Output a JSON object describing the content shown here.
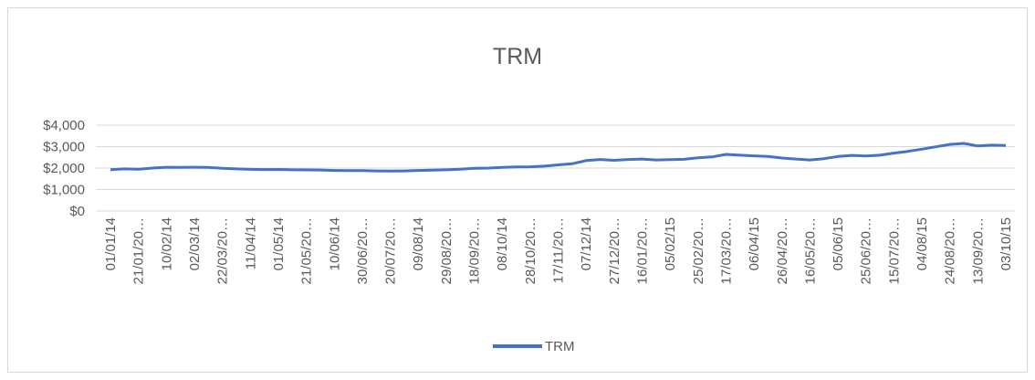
{
  "chart_data": {
    "type": "line",
    "title": "TRM",
    "categories": [
      "01/01/14",
      null,
      "21/01/20…",
      null,
      "10/02/14",
      null,
      "02/03/14",
      null,
      "22/03/20…",
      null,
      "11/04/14",
      null,
      "01/05/14",
      null,
      "21/05/20…",
      null,
      "10/06/14",
      null,
      "30/06/20…",
      null,
      "20/07/20…",
      null,
      "09/08/14",
      null,
      "29/08/20…",
      null,
      "18/09/20…",
      null,
      "08/10/14",
      null,
      "28/10/20…",
      null,
      "17/11/20…",
      null,
      "07/12/14",
      null,
      "27/12/20…",
      null,
      "16/01/20…",
      null,
      "05/02/15",
      null,
      "25/02/20…",
      null,
      "17/03/20…",
      null,
      "06/04/15",
      null,
      "26/04/20…",
      null,
      "16/05/20…",
      null,
      "05/06/15",
      null,
      "25/06/20…",
      null,
      "15/07/20…",
      null,
      "04/08/15",
      null,
      "24/08/20…",
      null,
      "13/09/20…",
      null,
      "03/10/15"
    ],
    "series": [
      {
        "name": "TRM",
        "color": "#4472c4",
        "values": [
          1927,
          1960,
          1950,
          2000,
          2040,
          2035,
          2040,
          2030,
          1990,
          1960,
          1940,
          1930,
          1935,
          1920,
          1915,
          1910,
          1890,
          1880,
          1880,
          1870,
          1860,
          1870,
          1890,
          1900,
          1920,
          1950,
          1990,
          2000,
          2030,
          2050,
          2060,
          2090,
          2150,
          2200,
          2350,
          2400,
          2360,
          2400,
          2420,
          2380,
          2390,
          2410,
          2480,
          2520,
          2640,
          2600,
          2570,
          2540,
          2470,
          2420,
          2380,
          2440,
          2540,
          2590,
          2560,
          2600,
          2700,
          2780,
          2880,
          2990,
          3100,
          3150,
          3030,
          3070,
          3050
        ]
      }
    ],
    "ylim": [
      0,
      4000
    ],
    "yticks": [
      {
        "value": 0,
        "label": "$0"
      },
      {
        "value": 1000,
        "label": "$1,000"
      },
      {
        "value": 2000,
        "label": "$2,000"
      },
      {
        "value": 3000,
        "label": "$3,000"
      },
      {
        "value": 4000,
        "label": "$4,000"
      }
    ],
    "grid": true,
    "legend": "bottom"
  }
}
